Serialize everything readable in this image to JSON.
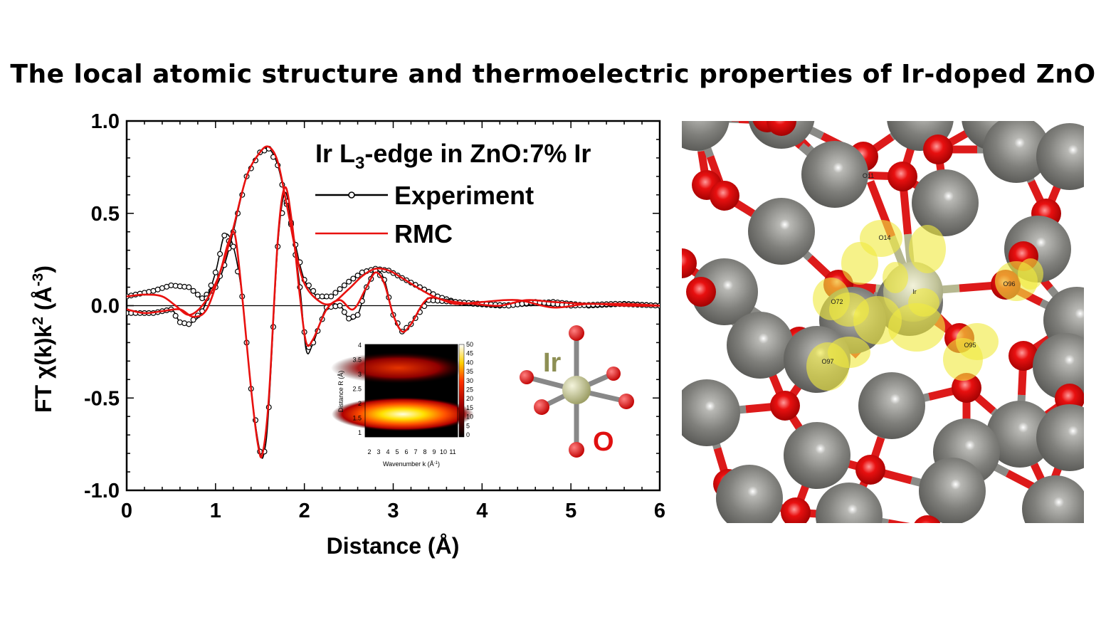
{
  "title": "The local atomic structure and thermoelectric properties of Ir-doped ZnO",
  "colors": {
    "experiment": "#000000",
    "rmc": "#e8110f",
    "ir_atom": "#bdbf88",
    "o_atom": "#e01010",
    "zn_atom": "#7f7f7c",
    "density": "#f0ea40"
  },
  "chart_data": {
    "type": "line",
    "xlabel": "Distance (Å)",
    "ylabel_main": "FT χ(k)k",
    "ylabel_sup": "2",
    "ylabel_units_pre": " (Å",
    "ylabel_units_sup": "-3",
    "ylabel_units_post": ")",
    "xlim": [
      0,
      6
    ],
    "ylim": [
      -1.0,
      1.0
    ],
    "xticks": [
      "0",
      "1",
      "2",
      "3",
      "4",
      "5",
      "6"
    ],
    "yticks": [
      "1.0",
      "0.5",
      "0.0",
      "-0.5",
      "-1.0"
    ],
    "annotation": {
      "pre": "Ir L",
      "sub": "3",
      "post": "-edge in ZnO:7% Ir"
    },
    "legend": [
      "Experiment",
      "RMC"
    ],
    "series": [
      {
        "name": "Experiment",
        "style": "line-open-circles",
        "x": [
          0.0,
          0.3,
          0.5,
          0.7,
          0.85,
          1.0,
          1.1,
          1.2,
          1.35,
          1.5,
          1.6,
          1.7,
          1.8,
          1.9,
          2.0,
          2.15,
          2.3,
          2.5,
          2.65,
          2.8,
          2.95,
          3.1,
          3.3,
          3.5,
          3.7,
          3.9,
          4.2,
          4.5,
          4.8,
          5.2,
          5.6,
          6.0
        ],
        "y": [
          0.05,
          0.08,
          0.11,
          0.1,
          0.04,
          0.1,
          0.22,
          0.4,
          0.7,
          0.83,
          0.85,
          0.76,
          0.55,
          0.33,
          0.14,
          0.05,
          0.05,
          0.13,
          0.18,
          0.2,
          0.19,
          0.15,
          0.1,
          0.05,
          0.02,
          0.01,
          0.0,
          0.01,
          0.02,
          0.0,
          0.01,
          0.0
        ]
      },
      {
        "name": "Experiment",
        "style": "line-open-circles",
        "x": [
          0.0,
          0.3,
          0.5,
          0.6,
          0.7,
          0.85,
          1.0,
          1.1,
          1.2,
          1.3,
          1.4,
          1.5,
          1.55,
          1.6,
          1.7,
          1.78,
          1.85,
          1.95,
          2.02,
          2.1,
          2.25,
          2.4,
          2.5,
          2.6,
          2.7,
          2.8,
          2.9,
          3.0,
          3.1,
          3.2,
          3.4,
          3.7,
          4.0,
          4.3,
          4.6,
          5.0,
          5.5,
          6.0
        ],
        "y": [
          -0.04,
          -0.04,
          -0.02,
          -0.09,
          -0.1,
          -0.03,
          0.18,
          0.38,
          0.32,
          0.05,
          -0.45,
          -0.79,
          -0.79,
          -0.55,
          0.32,
          0.61,
          0.45,
          0.1,
          -0.24,
          -0.2,
          -0.01,
          0.0,
          -0.07,
          -0.05,
          0.1,
          0.19,
          0.14,
          -0.05,
          -0.14,
          -0.1,
          0.03,
          0.02,
          0.01,
          0.0,
          0.02,
          0.0,
          0.01,
          0.0
        ]
      },
      {
        "name": "RMC",
        "style": "line",
        "x": [
          0.0,
          0.2,
          0.4,
          0.55,
          0.7,
          0.85,
          1.0,
          1.1,
          1.2,
          1.35,
          1.5,
          1.6,
          1.7,
          1.8,
          1.9,
          2.0,
          2.15,
          2.3,
          2.5,
          2.65,
          2.8,
          2.95,
          3.1,
          3.3,
          3.5,
          3.7,
          3.9,
          4.2,
          4.5,
          4.8,
          5.2,
          5.6,
          6.0
        ],
        "y": [
          0.05,
          0.06,
          0.05,
          0.0,
          -0.05,
          0.0,
          0.12,
          0.25,
          0.42,
          0.7,
          0.83,
          0.86,
          0.78,
          0.55,
          0.3,
          0.12,
          0.03,
          0.01,
          0.09,
          0.16,
          0.2,
          0.19,
          0.15,
          0.09,
          0.04,
          0.02,
          0.01,
          0.0,
          0.03,
          0.02,
          0.01,
          0.01,
          0.0
        ]
      },
      {
        "name": "RMC",
        "style": "line",
        "x": [
          0.0,
          0.2,
          0.4,
          0.6,
          0.75,
          0.9,
          1.05,
          1.15,
          1.22,
          1.3,
          1.4,
          1.48,
          1.53,
          1.6,
          1.7,
          1.78,
          1.86,
          1.95,
          2.02,
          2.1,
          2.25,
          2.4,
          2.55,
          2.7,
          2.8,
          2.9,
          3.0,
          3.1,
          3.2,
          3.4,
          3.7,
          4.0,
          4.4,
          4.8,
          5.2,
          5.6,
          6.0
        ],
        "y": [
          -0.02,
          -0.04,
          -0.03,
          -0.02,
          -0.06,
          -0.02,
          0.18,
          0.35,
          0.38,
          0.05,
          -0.45,
          -0.76,
          -0.8,
          -0.5,
          0.35,
          0.64,
          0.45,
          0.05,
          -0.2,
          -0.18,
          -0.02,
          0.03,
          -0.02,
          0.1,
          0.18,
          0.12,
          -0.05,
          -0.14,
          -0.1,
          0.04,
          0.01,
          0.02,
          0.03,
          -0.01,
          0.01,
          0.0,
          0.0
        ]
      }
    ],
    "inset": {
      "type": "heatmap",
      "xlabel": "Wavenumber k (Å",
      "xlabel_sup": "-1",
      "xlabel_post": ")",
      "ylabel": "Distance R (Å)",
      "xticks": [
        "2",
        "3",
        "4",
        "5",
        "6",
        "7",
        "8",
        "9",
        "10",
        "11"
      ],
      "yticks": [
        "4",
        "3.5",
        "3",
        "2.5",
        "2",
        "1.5",
        "1"
      ],
      "colorbar_ticks": [
        "50",
        "45",
        "40",
        "35",
        "30",
        "25",
        "20",
        "15",
        "10",
        "5",
        "0"
      ]
    },
    "molecule_labels": {
      "center": "Ir",
      "ligand": "O"
    }
  },
  "structure_labels": [
    "Ir",
    "O11",
    "O14",
    "O72",
    "O96",
    "O97",
    "O95"
  ]
}
